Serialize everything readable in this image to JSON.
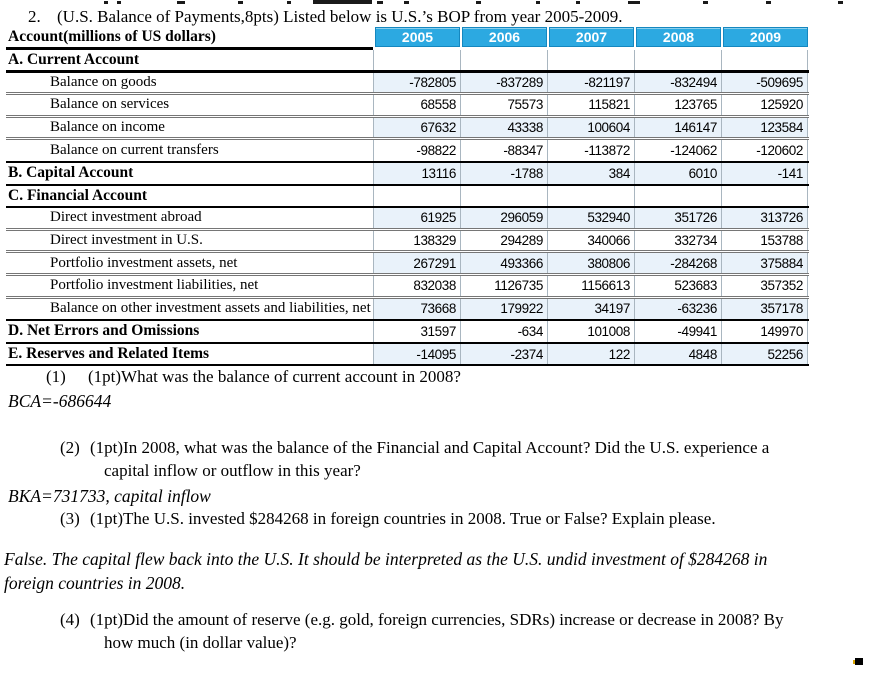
{
  "page": {
    "title_number": "2.",
    "title_text": "(U.S. Balance of Payments,8pts) Listed below is U.S.’s BOP from year 2005-2009."
  },
  "table": {
    "colors": {
      "header_blue": "#2CA9E1",
      "header_border_blue": "#1587BF",
      "row_tint": "#E9F2FA"
    },
    "header": {
      "label": "Account(millions of US dollars)",
      "years": [
        "2005",
        "2006",
        "2007",
        "2008",
        "2009"
      ]
    },
    "rows": [
      {
        "label": "A. Current Account",
        "type": "section",
        "shade": false,
        "border": "xheavy",
        "values": [
          "",
          "",
          "",
          "",
          ""
        ]
      },
      {
        "label": "Balance on goods",
        "type": "item",
        "shade": true,
        "border": "thin",
        "values": [
          "-782805",
          "-837289",
          "-821197",
          "-832494",
          "-509695"
        ]
      },
      {
        "label": "Balance on services",
        "type": "item",
        "shade": false,
        "border": "thin",
        "values": [
          "68558",
          "75573",
          "115821",
          "123765",
          "125920"
        ]
      },
      {
        "label": "Balance on income",
        "type": "item",
        "shade": true,
        "border": "thin",
        "values": [
          "67632",
          "43338",
          "100604",
          "146147",
          "123584"
        ]
      },
      {
        "label": "Balance on current transfers",
        "type": "item",
        "shade": false,
        "border": "heavy",
        "values": [
          "-98822",
          "-88347",
          "-113872",
          "-124062",
          "-120602"
        ]
      },
      {
        "label": "B. Capital Account",
        "type": "section",
        "shade": true,
        "border": "heavy",
        "values": [
          "13116",
          "-1788",
          "384",
          "6010",
          "-141"
        ]
      },
      {
        "label": "C. Financial Account",
        "type": "section",
        "shade": false,
        "border": "heavy",
        "values": [
          "",
          "",
          "",
          "",
          ""
        ]
      },
      {
        "label": "Direct investment abroad",
        "type": "item",
        "shade": true,
        "border": "thin",
        "values": [
          "61925",
          "296059",
          "532940",
          "351726",
          "313726"
        ]
      },
      {
        "label": "Direct investment in U.S.",
        "type": "item",
        "shade": false,
        "border": "thin",
        "values": [
          "138329",
          "294289",
          "340066",
          "332734",
          "153788"
        ]
      },
      {
        "label": "Portfolio investment assets, net",
        "type": "item",
        "shade": true,
        "border": "thin",
        "values": [
          "267291",
          "493366",
          "380806",
          "-284268",
          "375884"
        ]
      },
      {
        "label": "Portfolio investment liabilities, net",
        "type": "item",
        "shade": false,
        "border": "thin",
        "values": [
          "832038",
          "1126735",
          "1156613",
          "523683",
          "357352"
        ]
      },
      {
        "label": "Balance on other investment assets and liabilities, net",
        "type": "item",
        "shade": true,
        "border": "heavy",
        "values": [
          "73668",
          "179922",
          "34197",
          "-63236",
          "357178"
        ]
      },
      {
        "label": "D. Net Errors and Omissions",
        "type": "section",
        "shade": false,
        "border": "heavy",
        "values": [
          "31597",
          "-634",
          "101008",
          "-49941",
          "149970"
        ]
      },
      {
        "label": "E. Reserves and Related Items",
        "type": "section",
        "shade": true,
        "border": "heavy",
        "values": [
          "-14095",
          "-2374",
          "122",
          "4848",
          "52256"
        ]
      }
    ]
  },
  "questions": {
    "q1": {
      "num": "(1)",
      "text": "(1pt)What was the balance of current account in 2008?"
    },
    "a1": "BCA=-686644",
    "q2": {
      "num": "(2)",
      "line1": "(1pt)In 2008, what was the balance of the Financial and Capital Account? Did the U.S. experience a",
      "line2": "capital inflow or outflow in this year?"
    },
    "a2": "BKA=731733, capital inflow",
    "q3": {
      "num": "(3)",
      "text": "(1pt)The U.S. invested $284268 in foreign countries in 2008. True or False? Explain please."
    },
    "a3": {
      "line1": "False. The capital flew back into the U.S. It should be interpreted as the U.S. undid investment of $284268 in",
      "line2": "foreign countries in 2008."
    },
    "q4": {
      "num": "(4)",
      "line1": "(1pt)Did the amount of reserve (e.g. gold, foreign currencies, SDRs) increase or decrease in 2008? By",
      "line2": "how much (in dollar value)?"
    }
  }
}
